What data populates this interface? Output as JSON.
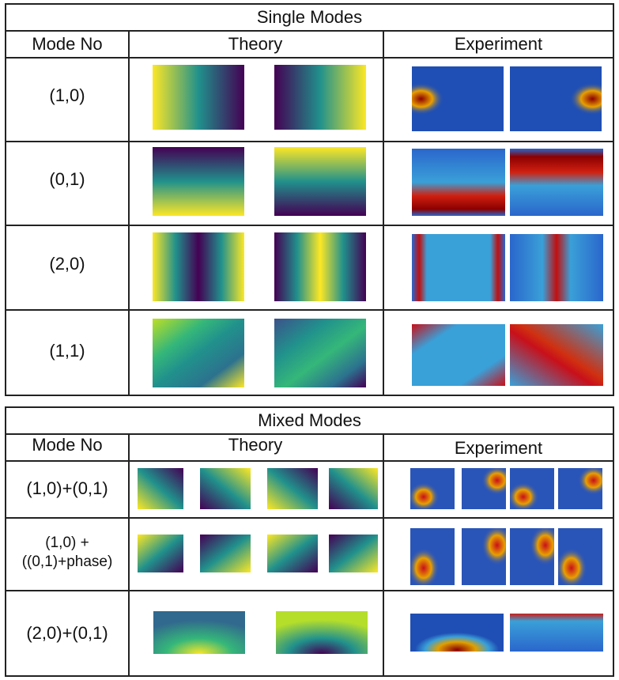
{
  "single": {
    "title": "Single Modes",
    "col_mode": "Mode No",
    "col_theory": "Theory",
    "col_experiment": "Experiment",
    "rows": [
      {
        "label": "(1,0)"
      },
      {
        "label": "(0,1)"
      },
      {
        "label": "(2,0)"
      },
      {
        "label": "(1,1)"
      }
    ]
  },
  "mixed": {
    "title": "Mixed Modes",
    "col_mode": "Mode No",
    "col_theory": "Theory",
    "col_experiment": "Experiment",
    "rows": [
      {
        "label": "(1,0)+(0,1)"
      },
      {
        "label_line1": "(1,0) +",
        "label_line2": "((0,1)+phase)"
      },
      {
        "label": "(2,0)+(0,1)"
      }
    ]
  },
  "colors": {
    "viridis_dark": "#440154",
    "viridis_mid": "#21918c",
    "viridis_light": "#fde725",
    "jet_bg": "#1f4fb4",
    "jet_hot": "#c8001a"
  }
}
